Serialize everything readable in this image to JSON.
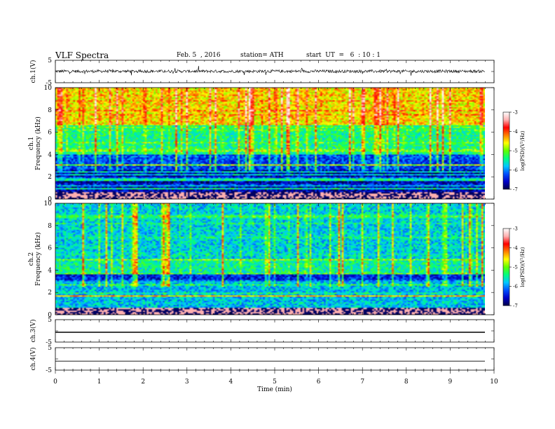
{
  "header": {
    "title": "VLF  Spectra",
    "date": "Feb. 5  , 2016",
    "station": "station= ATH",
    "start": "start  UT  =   6  : 10 : 1"
  },
  "chart_data": [
    {
      "type": "line",
      "panel": "ch1-waveform",
      "ylabel": "ch.1(V)",
      "yticks": [
        "5",
        "-5"
      ],
      "ylim": [
        -5,
        5
      ],
      "description_level": 0
    },
    {
      "type": "heatmap",
      "panel": "ch1-spectrogram",
      "ylabel": "ch.1\nFrequency  (kHz)",
      "ylabel_line1": "ch.1",
      "ylabel_line2": "Frequency  (kHz)",
      "yticks": [
        "0",
        "2",
        "4",
        "6",
        "8",
        "10"
      ],
      "ylim": [
        0,
        10
      ],
      "colorbar": {
        "label": "log(PSD)(V²/Hz)",
        "ticks": [
          "-3",
          "-4",
          "-5",
          "-6",
          "-7"
        ],
        "range": [
          -7,
          -3
        ]
      }
    },
    {
      "type": "heatmap",
      "panel": "ch2-spectrogram",
      "ylabel_line1": "ch.2",
      "ylabel_line2": "Frequency  (kHz)",
      "yticks": [
        "0",
        "2",
        "4",
        "6",
        "8",
        "10"
      ],
      "ylim": [
        0,
        10
      ],
      "colorbar": {
        "label": "log(PSD)(V²/Hz)",
        "ticks": [
          "-3",
          "-4",
          "-5",
          "-6",
          "-7"
        ],
        "range": [
          -7,
          -3
        ]
      }
    },
    {
      "type": "line",
      "panel": "ch3-waveform",
      "ylabel": "ch.3(V)",
      "yticks": [
        "5",
        "-5"
      ],
      "ylim": [
        -5,
        5
      ]
    },
    {
      "type": "line",
      "panel": "ch4-waveform",
      "ylabel": "ch.4(V)",
      "yticks": [
        "5",
        "-5"
      ],
      "ylim": [
        -5,
        5
      ],
      "level": -1
    }
  ],
  "xaxis": {
    "xlabel": "Time  (min)",
    "ticks": [
      "0",
      "1",
      "2",
      "3",
      "4",
      "5",
      "6",
      "7",
      "8",
      "9",
      "10"
    ],
    "xlim": [
      0,
      10
    ],
    "data_end_min": 9.8
  },
  "colors": {
    "colormap": [
      "#000048",
      "#0000c8",
      "#0050ff",
      "#00c8ff",
      "#00ff80",
      "#60ff00",
      "#ffff00",
      "#ff8000",
      "#ff0000",
      "#ffb0b0",
      "#ffffff"
    ]
  }
}
